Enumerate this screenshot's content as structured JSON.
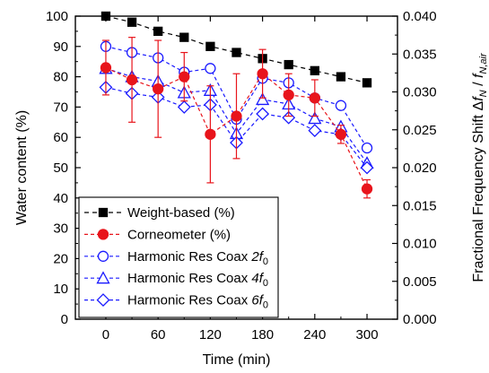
{
  "chart_data": {
    "type": "line",
    "xlabel": "Time (min)",
    "ylabel_left": "Water content (%)",
    "ylabel_right_parts": [
      "Fractional Frequency Shift Δ",
      "f",
      "N",
      " / ",
      "f",
      "N,air"
    ],
    "x_ticks": [
      0,
      60,
      120,
      180,
      240,
      300
    ],
    "xlim": [
      -35,
      335
    ],
    "y_left_ticks": [
      0,
      10,
      20,
      30,
      40,
      50,
      60,
      70,
      80,
      90,
      100
    ],
    "y_left_lim": [
      0,
      100
    ],
    "y_right_ticks": [
      "0.000",
      "0.005",
      "0.010",
      "0.015",
      "0.020",
      "0.025",
      "0.030",
      "0.035",
      "0.040"
    ],
    "y_right_lim": [
      0,
      0.04
    ],
    "grid": false,
    "legend_position": "bottom-left",
    "series": [
      {
        "name": "Weight-based (%)",
        "axis": "left",
        "color": "#000000",
        "marker": "square",
        "filled": true,
        "dash": "5,4",
        "x": [
          0,
          30,
          60,
          90,
          120,
          150,
          180,
          210,
          240,
          270,
          300
        ],
        "y": [
          100,
          98,
          95,
          93,
          90,
          88,
          86,
          84,
          82,
          80,
          78
        ]
      },
      {
        "name": "Corneometer (%)",
        "axis": "left",
        "color": "#e8141b",
        "marker": "circle",
        "filled": true,
        "dash": "4,3",
        "x": [
          0,
          30,
          60,
          90,
          120,
          150,
          180,
          210,
          240,
          270,
          300
        ],
        "y": [
          83,
          79,
          76,
          80,
          61,
          67,
          81,
          74,
          73,
          61,
          43
        ],
        "err": [
          9,
          14,
          16,
          8,
          16,
          14,
          8,
          7,
          6,
          3,
          3
        ]
      },
      {
        "name_parts": [
          "Harmonic Res Coax ",
          "2f",
          "0"
        ],
        "axis": "right",
        "color": "#1a1aff",
        "marker": "circle",
        "filled": false,
        "dash": "4,3",
        "x": [
          0,
          30,
          60,
          90,
          120,
          150,
          180,
          210,
          240,
          270,
          300
        ],
        "y": [
          0.036,
          0.0352,
          0.0345,
          0.0326,
          0.0331,
          0.0264,
          0.0318,
          0.0312,
          0.0292,
          0.0282,
          0.0226
        ]
      },
      {
        "name_parts": [
          "Harmonic Res Coax ",
          "4f",
          "0"
        ],
        "axis": "right",
        "color": "#1a1aff",
        "marker": "triangle",
        "filled": false,
        "dash": "4,3",
        "x": [
          0,
          30,
          60,
          90,
          120,
          150,
          180,
          210,
          240,
          270,
          300
        ],
        "y": [
          0.0331,
          0.032,
          0.0314,
          0.0299,
          0.0302,
          0.0245,
          0.029,
          0.0284,
          0.0265,
          0.0254,
          0.0206
        ]
      },
      {
        "name_parts": [
          "Harmonic Res Coax ",
          "6f",
          "0"
        ],
        "axis": "right",
        "color": "#1a1aff",
        "marker": "diamond",
        "filled": false,
        "dash": "4,3",
        "x": [
          0,
          30,
          60,
          90,
          120,
          150,
          180,
          210,
          240,
          270,
          300
        ],
        "y": [
          0.0306,
          0.0298,
          0.0293,
          0.028,
          0.0283,
          0.0233,
          0.0271,
          0.0266,
          0.0249,
          0.0244,
          0.02
        ]
      }
    ]
  }
}
